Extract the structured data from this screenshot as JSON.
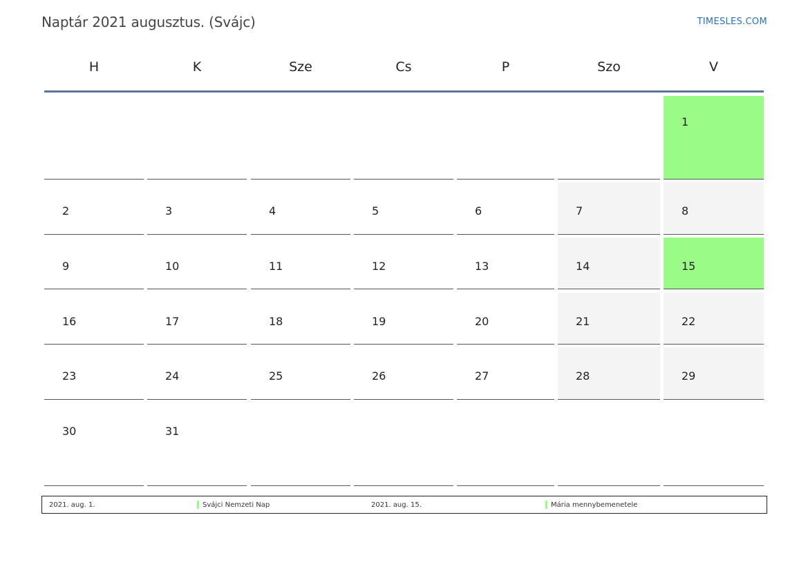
{
  "title": "Naptár 2021 augusztus. (Svájc)",
  "site": "TIMESLES.COM",
  "colors": {
    "holiday": "#9bfb87",
    "weekend": "#f4f4f4",
    "header_rule": "#5b7599",
    "link": "#2a72b5"
  },
  "weekdays": [
    "H",
    "K",
    "Sze",
    "Cs",
    "P",
    "Szo",
    "V"
  ],
  "days": {
    "d1": "1",
    "d2": "2",
    "d3": "3",
    "d4": "4",
    "d5": "5",
    "d6": "6",
    "d7": "7",
    "d8": "8",
    "d9": "9",
    "d10": "10",
    "d11": "11",
    "d12": "12",
    "d13": "13",
    "d14": "14",
    "d15": "15",
    "d16": "16",
    "d17": "17",
    "d18": "18",
    "d19": "19",
    "d20": "20",
    "d21": "21",
    "d22": "22",
    "d23": "23",
    "d24": "24",
    "d25": "25",
    "d26": "26",
    "d27": "27",
    "d28": "28",
    "d29": "29",
    "d30": "30",
    "d31": "31"
  },
  "holidays": [
    {
      "date": "2021. aug. 1.",
      "name": "Svájci Nemzeti Nap"
    },
    {
      "date": "2021. aug. 15.",
      "name": "Mária mennybemenetele"
    }
  ]
}
